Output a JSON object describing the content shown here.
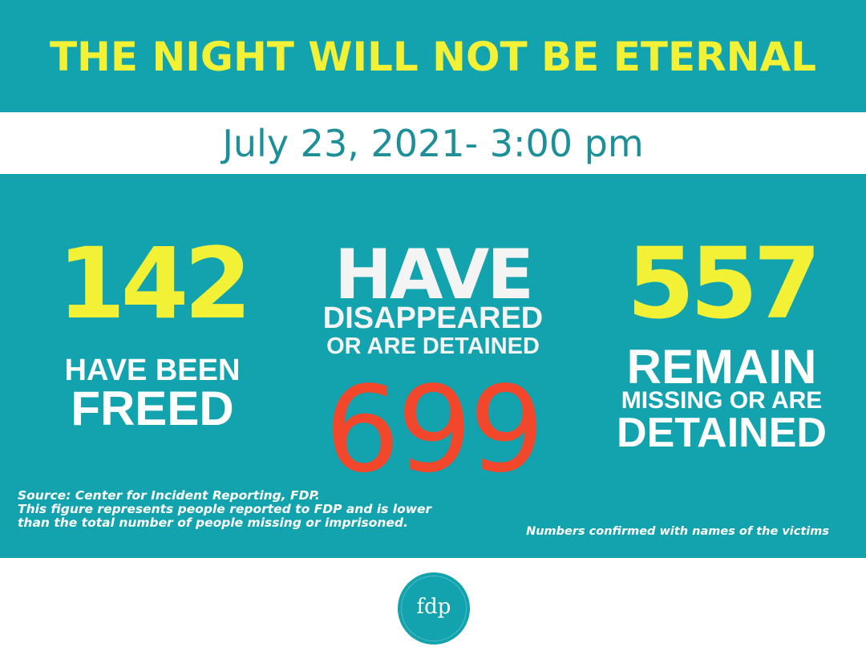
{
  "header": {
    "title": "THE NIGHT WILL NOT BE ETERNAL",
    "date": "July 23, 2021- 3:00 pm"
  },
  "stats": {
    "freed": {
      "number": "142",
      "label_1": "HAVE BEEN",
      "label_2": "FREED"
    },
    "disappeared": {
      "label_big": "HAVE",
      "label_1": "DISAPPEARED",
      "label_2": "OR ARE DETAINED",
      "number": "699"
    },
    "remaining": {
      "number": "557",
      "label_1": "REMAIN",
      "label_2": "MISSING OR ARE",
      "label_3": "DETAINED"
    }
  },
  "notes": {
    "source_1": "Source: Center for Incident Reporting, FDP.",
    "source_2": "This figure represents people reported to FDP and is lower",
    "source_3": "than the total number of people missing or imprisoned.",
    "confirmed": "Numbers confirmed with names of the victims"
  },
  "logo": {
    "text": "fdp"
  },
  "colors": {
    "teal": "#12a3ae",
    "yellow": "#f2f135",
    "red": "#f2472a",
    "date_teal": "#1d8f99",
    "white": "#ffffff"
  }
}
